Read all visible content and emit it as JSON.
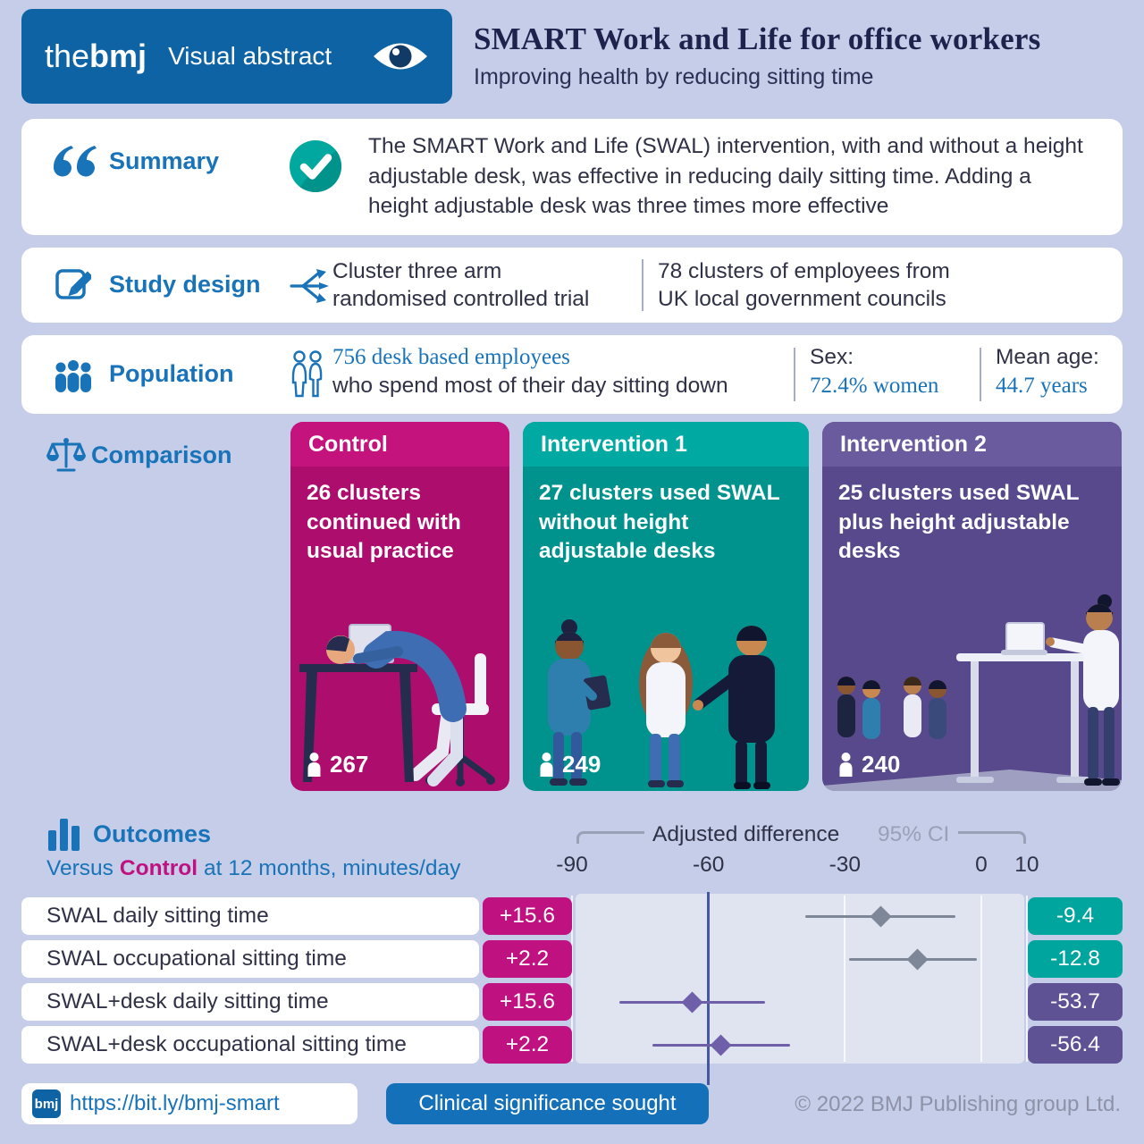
{
  "header": {
    "logo_the": "the",
    "logo_bmj": "bmj",
    "logo_tagline": "Visual abstract",
    "title": "SMART Work and Life for office workers",
    "subtitle": "Improving health by reducing sitting time"
  },
  "summary": {
    "label": "Summary",
    "text": "The SMART Work and Life (SWAL) intervention, with and without a height adjustable desk, was effective in reducing daily sitting time. Adding a height adjustable desk was three times more effective"
  },
  "study_design": {
    "label": "Study design",
    "design_lines": [
      "Cluster three arm",
      "randomised controlled trial"
    ],
    "clusters_lines": [
      "78 clusters of employees from",
      "UK local government councils"
    ]
  },
  "population": {
    "label": "Population",
    "highlight": "756 desk based employees",
    "detail": "who spend most of their day sitting down",
    "sex_label": "Sex:",
    "sex_value": "72.4% women",
    "age_label": "Mean age:",
    "age_value": "44.7 years"
  },
  "comparison": {
    "label": "Comparison",
    "cards": [
      {
        "title": "Control",
        "description": "26 clusters continued with usual practice",
        "count": "267"
      },
      {
        "title": "Intervention 1",
        "description": "27 clusters used SWAL without height adjustable desks",
        "count": "249"
      },
      {
        "title": "Intervention 2",
        "description": "25 clusters used SWAL plus height adjustable desks",
        "count": "240"
      }
    ]
  },
  "outcomes": {
    "label": "Outcomes",
    "versus_prefix": "Versus",
    "versus_highlight": "Control",
    "versus_suffix": "at 12 months, minutes/day",
    "axis_title": "Adjusted difference",
    "axis_ci_label": "95% CI"
  },
  "chart_data": {
    "type": "forest",
    "title": "Adjusted difference",
    "ci_label": "95% CI",
    "x_unit": "minutes/day versus control at 12 months",
    "axis_ticks": [
      -90,
      -60,
      -30,
      0,
      10
    ],
    "xlim": [
      -97,
      15
    ],
    "clinical_significance_x": -60,
    "clinical_significance_label": "Clinical significance sought",
    "rows": [
      {
        "label": "SWAL daily sitting time",
        "control_change": "+15.6",
        "arm_change": "-9.4",
        "point": -22.2,
        "ci_low": -38.8,
        "ci_high": -5.7,
        "arm_color": "#00a59e",
        "marker_color": "#7e8798"
      },
      {
        "label": "SWAL occupational sitting time",
        "control_change": "+2.2",
        "arm_change": "-12.8",
        "point": -14.0,
        "ci_low": -29.0,
        "ci_high": -1.0,
        "arm_color": "#00a59e",
        "marker_color": "#7e8798"
      },
      {
        "label": "SWAL+desk daily sitting time",
        "control_change": "+15.6",
        "arm_change": "-53.7",
        "point": -63.5,
        "ci_low": -79.5,
        "ci_high": -47.5,
        "arm_color": "#5e5194",
        "marker_color": "#6f5fa8"
      },
      {
        "label": "SWAL+desk occupational sitting time",
        "control_change": "+2.2",
        "arm_change": "-56.4",
        "point": -57.2,
        "ci_low": -72.3,
        "ci_high": -42.0,
        "arm_color": "#5e5194",
        "marker_color": "#6f5fa8"
      }
    ]
  },
  "footer": {
    "logo": "bmj",
    "link": "https://bit.ly/bmj-smart",
    "clinical_badge": "Clinical significance sought",
    "copyright": "© 2022 BMJ Publishing group Ltd."
  },
  "colors": {
    "background": "#c5cde8",
    "bmj_blue": "#0e63a5",
    "label_blue": "#1873b8",
    "magenta": "#c01180",
    "teal": "#00a59e",
    "purple": "#5e5194",
    "dark_text": "#2f3146"
  }
}
